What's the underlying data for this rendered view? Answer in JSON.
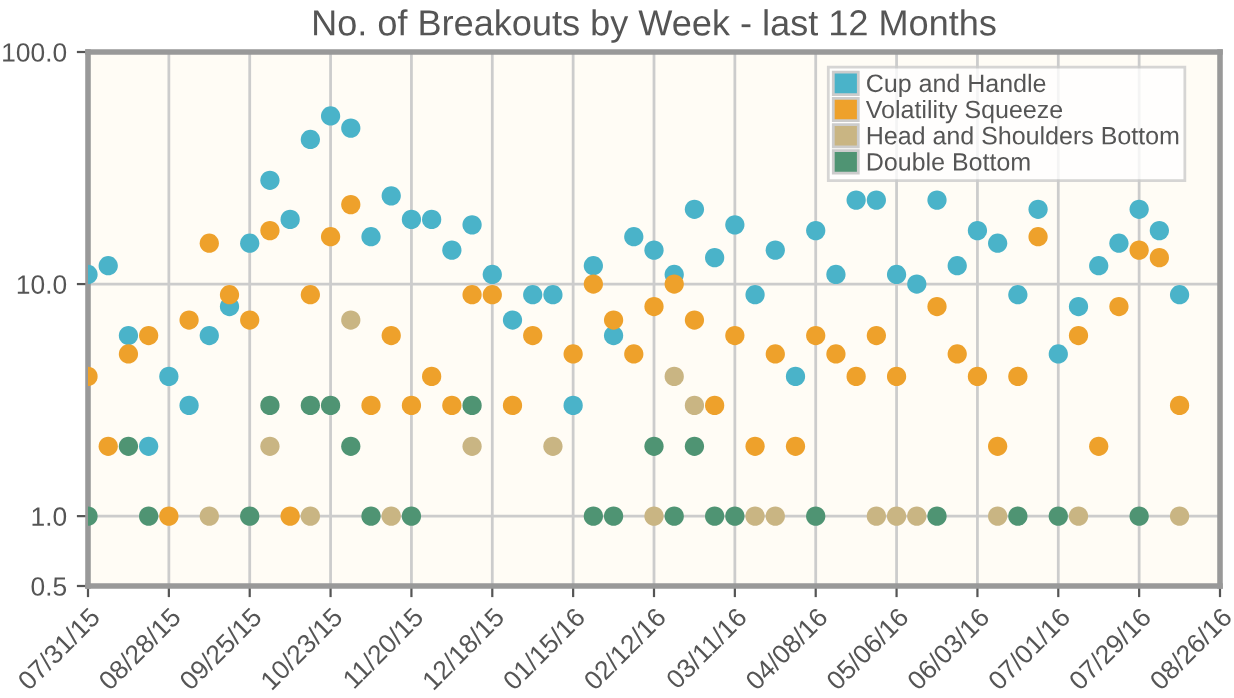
{
  "chart_data": {
    "type": "scatter",
    "title": "No. of Breakouts by Week - last 12 Months",
    "x": [
      "2015-07-31",
      "2015-08-07",
      "2015-08-14",
      "2015-08-21",
      "2015-08-28",
      "2015-09-04",
      "2015-09-11",
      "2015-09-18",
      "2015-09-25",
      "2015-10-02",
      "2015-10-09",
      "2015-10-16",
      "2015-10-23",
      "2015-10-30",
      "2015-11-06",
      "2015-11-13",
      "2015-11-20",
      "2015-11-27",
      "2015-12-04",
      "2015-12-11",
      "2015-12-18",
      "2015-12-25",
      "2016-01-01",
      "2016-01-08",
      "2016-01-15",
      "2016-01-22",
      "2016-01-29",
      "2016-02-05",
      "2016-02-12",
      "2016-02-19",
      "2016-02-26",
      "2016-03-04",
      "2016-03-11",
      "2016-03-18",
      "2016-03-25",
      "2016-04-01",
      "2016-04-08",
      "2016-04-15",
      "2016-04-22",
      "2016-04-29",
      "2016-05-06",
      "2016-05-13",
      "2016-05-20",
      "2016-05-27",
      "2016-06-03",
      "2016-06-10",
      "2016-06-17",
      "2016-06-24",
      "2016-07-01",
      "2016-07-08",
      "2016-07-15",
      "2016-07-22",
      "2016-07-29",
      "2016-08-05",
      "2016-08-12"
    ],
    "series": [
      {
        "name": "Cup and Handle",
        "color": "#4ab3c9",
        "values": [
          11,
          12,
          6,
          2,
          4,
          3,
          6,
          8,
          15,
          28,
          19,
          42,
          53,
          47,
          16,
          24,
          19,
          19,
          14,
          18,
          11,
          7,
          9,
          9,
          3,
          12,
          6,
          16,
          14,
          11,
          21,
          13,
          18,
          9,
          14,
          4,
          17,
          11,
          23,
          23,
          11,
          10,
          23,
          12,
          17,
          15,
          9,
          21,
          5,
          8,
          12,
          15,
          21,
          17,
          9
        ]
      },
      {
        "name": "Volatility Squeeze",
        "color": "#eea12b",
        "values": [
          4,
          2,
          5,
          6,
          1,
          7,
          15,
          9,
          7,
          17,
          1,
          9,
          16,
          22,
          3,
          6,
          3,
          4,
          3,
          9,
          9,
          3,
          6,
          null,
          5,
          10,
          7,
          5,
          8,
          10,
          7,
          3,
          6,
          2,
          5,
          2,
          6,
          5,
          4,
          6,
          4,
          null,
          8,
          5,
          4,
          2,
          4,
          16,
          null,
          6,
          2,
          8,
          14,
          13,
          3
        ]
      },
      {
        "name": "Head and Shoulders Bottom",
        "color": "#c9b583",
        "values": [
          null,
          null,
          null,
          null,
          null,
          null,
          1,
          null,
          null,
          2,
          null,
          1,
          null,
          7,
          null,
          1,
          null,
          null,
          null,
          2,
          null,
          null,
          null,
          2,
          null,
          null,
          null,
          null,
          1,
          4,
          3,
          null,
          null,
          1,
          1,
          null,
          null,
          null,
          null,
          1,
          1,
          1,
          null,
          null,
          null,
          1,
          null,
          null,
          null,
          1,
          null,
          null,
          null,
          null,
          1
        ]
      },
      {
        "name": "Double Bottom",
        "color": "#4f9473",
        "values": [
          1,
          null,
          2,
          1,
          null,
          null,
          null,
          null,
          1,
          3,
          null,
          3,
          3,
          2,
          1,
          null,
          1,
          null,
          null,
          3,
          null,
          null,
          null,
          null,
          null,
          1,
          1,
          null,
          2,
          1,
          2,
          1,
          1,
          null,
          null,
          null,
          1,
          null,
          null,
          null,
          null,
          null,
          1,
          null,
          null,
          null,
          1,
          null,
          1,
          null,
          null,
          null,
          1,
          null,
          null
        ]
      }
    ],
    "log": "y",
    "ylim": [
      0.5,
      100
    ],
    "yticks": [
      {
        "value": 0.5,
        "label": "0.5"
      },
      {
        "value": 1,
        "label": "1.0"
      },
      {
        "value": 10,
        "label": "10.0"
      },
      {
        "value": 100,
        "label": "100.0"
      }
    ],
    "xlim": [
      "2015-07-31",
      "2016-08-26"
    ],
    "xticks": [
      {
        "value": "2015-07-31",
        "label": "07/31/15"
      },
      {
        "value": "2015-08-28",
        "label": "08/28/15"
      },
      {
        "value": "2015-09-25",
        "label": "09/25/15"
      },
      {
        "value": "2015-10-23",
        "label": "10/23/15"
      },
      {
        "value": "2015-11-20",
        "label": "11/20/15"
      },
      {
        "value": "2015-12-18",
        "label": "12/18/15"
      },
      {
        "value": "2016-01-15",
        "label": "01/15/16"
      },
      {
        "value": "2016-02-12",
        "label": "02/12/16"
      },
      {
        "value": "2016-03-11",
        "label": "03/11/16"
      },
      {
        "value": "2016-04-08",
        "label": "04/08/16"
      },
      {
        "value": "2016-05-06",
        "label": "05/06/16"
      },
      {
        "value": "2016-06-03",
        "label": "06/03/16"
      },
      {
        "value": "2016-07-01",
        "label": "07/01/16"
      },
      {
        "value": "2016-07-29",
        "label": "07/29/16"
      },
      {
        "value": "2016-08-26",
        "label": "08/26/16"
      }
    ],
    "grid": true,
    "legend": "top right",
    "marker": "circle"
  }
}
